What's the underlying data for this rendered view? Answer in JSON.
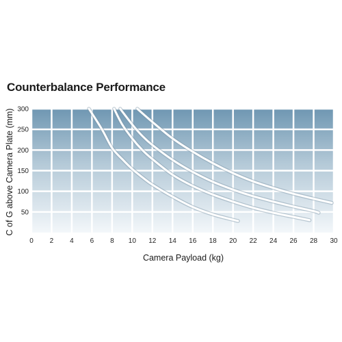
{
  "chart_data": {
    "type": "line",
    "title": "Counterbalance Performance",
    "xlabel": "Camera Payload (kg)",
    "ylabel": "C of G above Camera Plate (mm)",
    "xlim": [
      0,
      30
    ],
    "ylim": [
      0,
      300
    ],
    "x_ticks": [
      0,
      2,
      4,
      6,
      8,
      10,
      12,
      14,
      16,
      18,
      20,
      22,
      24,
      26,
      28,
      30
    ],
    "y_ticks": [
      50,
      100,
      150,
      200,
      250,
      300
    ],
    "grid": true,
    "series": [
      {
        "x": [
          5.7,
          7,
          8,
          9,
          10,
          11,
          12,
          14,
          16,
          18,
          20,
          20.5
        ],
        "y": [
          300,
          250,
          205,
          178,
          154,
          134,
          116,
          87,
          62,
          44,
          31,
          28
        ]
      },
      {
        "x": [
          8.2,
          9,
          10,
          11,
          12,
          14,
          16,
          18,
          20,
          22,
          24,
          26,
          27.6
        ],
        "y": [
          300,
          262,
          228,
          200,
          178,
          140,
          113,
          92,
          75,
          60,
          48,
          38,
          30
        ]
      },
      {
        "x": [
          8.8,
          10,
          11,
          12,
          14,
          16,
          18,
          20,
          22,
          24,
          26,
          28,
          28.5
        ],
        "y": [
          300,
          262,
          234,
          212,
          176,
          147,
          123,
          104,
          88,
          75,
          63,
          52,
          48
        ]
      },
      {
        "x": [
          10.5,
          12,
          14,
          16,
          18,
          20,
          22,
          24,
          26,
          28,
          29.8
        ],
        "y": [
          300,
          268,
          228,
          196,
          168,
          144,
          124,
          108,
          94,
          82,
          72
        ]
      }
    ],
    "colors": {
      "plot_top": "#6f97b2",
      "plot_mid": "#b5cad8",
      "plot_bottom": "#f3f7fa",
      "grid": "#ffffff",
      "curve": "#ffffff",
      "curve_shadow": "#7d95a7"
    }
  }
}
